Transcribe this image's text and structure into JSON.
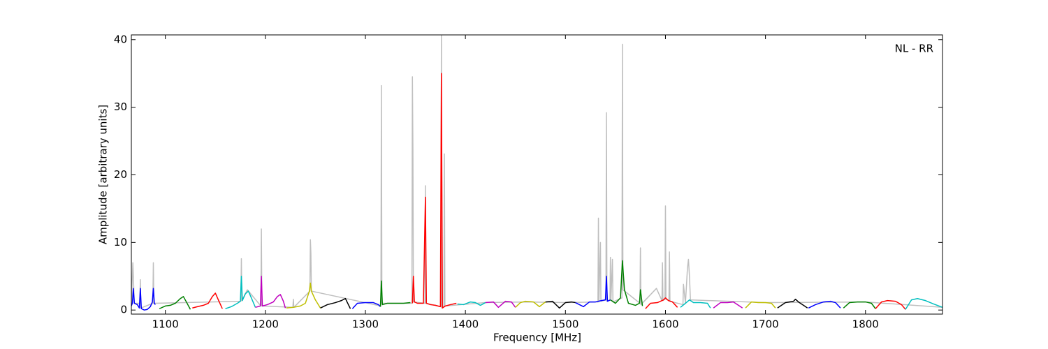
{
  "chart_data": {
    "type": "line",
    "x_label": "Frequency [MHz]",
    "y_label": "Amplitude [arbitrary units]",
    "annotation": "NL - RR",
    "xlim": [
      1066,
      1877
    ],
    "ylim": [
      -0.6,
      40.7
    ],
    "xticks": [
      1100,
      1200,
      1300,
      1400,
      1500,
      1600,
      1700,
      1800
    ],
    "yticks": [
      0,
      10,
      20,
      30,
      40
    ],
    "series": [
      {
        "color": "#bfbfbf",
        "x": [
          1066,
          1067.5,
          1069,
          1074.5,
          1075,
          1075.5,
          1087.5,
          1088,
          1088.5,
          1175.5,
          1176,
          1176.5,
          1182,
          1195.5,
          1196,
          1196.5,
          1227.5,
          1228,
          1228.5,
          1244.5,
          1245,
          1245.5,
          1246,
          1315.5,
          1316,
          1316.5,
          1346.5,
          1347,
          1347.5,
          1348,
          1359.5,
          1360,
          1360.5,
          1375.5,
          1376,
          1376.5,
          1378.5,
          1379,
          1379.5,
          1420,
          1460,
          1500,
          1532.5,
          1533,
          1533.5,
          1535,
          1535.5,
          1540.5,
          1541,
          1541.5,
          1544.5,
          1545,
          1545.5,
          1547,
          1547.5,
          1556.5,
          1557,
          1557.5,
          1574.5,
          1575,
          1575.5,
          1591,
          1596.5,
          1597,
          1597.5,
          1599.5,
          1600,
          1600.5,
          1603.5,
          1604,
          1604.5,
          1617.5,
          1618,
          1620,
          1622,
          1623,
          1624,
          1625,
          1700,
          1800,
          1877
        ],
        "values": [
          1,
          7,
          1,
          1,
          4.5,
          0.3,
          1,
          7,
          1,
          1.3,
          7.6,
          1.4,
          3,
          0.6,
          12,
          0.6,
          0.4,
          1.6,
          0.4,
          2.8,
          10.4,
          8.4,
          2.8,
          0.6,
          33.2,
          1,
          1,
          34.5,
          24,
          1.2,
          1,
          18.4,
          1,
          0.5,
          41,
          0.3,
          0.6,
          23.1,
          0.6,
          1.1,
          1.2,
          1.1,
          1.2,
          13.6,
          1.2,
          10,
          1.3,
          1.5,
          29.2,
          1.3,
          1.5,
          7.8,
          1.5,
          7.5,
          1.2,
          1.8,
          39.3,
          3,
          1,
          9.2,
          0.8,
          3.2,
          1.4,
          7,
          1.4,
          1.6,
          15.4,
          1.6,
          1.4,
          8.6,
          1.3,
          0.8,
          3.8,
          1,
          6.2,
          7.5,
          5,
          1.5,
          1.1,
          1.2,
          0.4
        ]
      },
      {
        "color": "#0000ff",
        "x": [
          1066,
          1067,
          1068,
          1069,
          1072,
          1074,
          1075,
          1076,
          1079,
          1082,
          1085,
          1087,
          1088,
          1089,
          1090
        ],
        "values": [
          0.6,
          1,
          3.2,
          1,
          0.8,
          0.3,
          3.2,
          0.2,
          0,
          0.1,
          0.5,
          1.2,
          3.2,
          1,
          0.8
        ]
      },
      {
        "color": "#008000",
        "x": [
          1094,
          1100,
          1105,
          1110,
          1115,
          1118,
          1121,
          1125
        ],
        "values": [
          0.2,
          0.6,
          0.7,
          1,
          1.7,
          2,
          1.2,
          0.1
        ]
      },
      {
        "color": "#ff0000",
        "x": [
          1127,
          1132,
          1138,
          1143,
          1147,
          1150,
          1153,
          1157
        ],
        "values": [
          0.3,
          0.5,
          0.7,
          1,
          2,
          2.5,
          1.5,
          0.2
        ]
      },
      {
        "color": "#00bfbf",
        "x": [
          1160,
          1166,
          1172,
          1175,
          1176,
          1177,
          1180,
          1183,
          1186,
          1190
        ],
        "values": [
          0.2,
          0.5,
          1,
          1.3,
          5,
          1.4,
          2.4,
          2.8,
          1.8,
          0.4
        ]
      },
      {
        "color": "#bf00bf",
        "x": [
          1190,
          1195,
          1196,
          1197,
          1202,
          1208,
          1212,
          1215,
          1218,
          1220
        ],
        "values": [
          0.4,
          0.6,
          5,
          0.6,
          0.8,
          1.2,
          2,
          2.3,
          1.3,
          0.3
        ]
      },
      {
        "color": "#bfbf00",
        "x": [
          1221,
          1228,
          1235,
          1240,
          1244,
          1245,
          1246,
          1250,
          1255
        ],
        "values": [
          0.3,
          0.4,
          0.6,
          1,
          2.8,
          4,
          2.8,
          1.5,
          0.3
        ]
      },
      {
        "color": "#000000",
        "x": [
          1255,
          1262,
          1270,
          1276,
          1280,
          1283,
          1285
        ],
        "values": [
          0.3,
          0.8,
          1.1,
          1.4,
          1.7,
          0.8,
          0.2
        ]
      },
      {
        "color": "#0000ff",
        "x": [
          1287,
          1292,
          1300,
          1308,
          1313,
          1315
        ],
        "values": [
          0.2,
          1,
          1.1,
          1.1,
          0.8,
          0.5
        ]
      },
      {
        "color": "#008000",
        "x": [
          1315,
          1316,
          1317,
          1322,
          1330,
          1338,
          1345
        ],
        "values": [
          0.5,
          4.3,
          0.8,
          1,
          1,
          1,
          1.1
        ]
      },
      {
        "color": "#ff0000",
        "x": [
          1347,
          1348,
          1349,
          1352,
          1358,
          1360,
          1361,
          1365,
          1370,
          1375,
          1376,
          1377,
          1380,
          1385,
          1391
        ],
        "values": [
          1,
          5,
          1.2,
          1,
          1,
          16.7,
          1,
          0.8,
          0.7,
          0.5,
          35,
          0.3,
          0.6,
          0.8,
          1
        ]
      },
      {
        "color": "#00bfbf",
        "x": [
          1392,
          1398,
          1405,
          1410,
          1415,
          1420
        ],
        "values": [
          0.9,
          0.8,
          1.2,
          1.1,
          0.7,
          1.1
        ]
      },
      {
        "color": "#bf00bf",
        "x": [
          1420,
          1428,
          1433,
          1440,
          1446,
          1450
        ],
        "values": [
          1.1,
          1.2,
          0.4,
          1.3,
          1.2,
          0.4
        ]
      },
      {
        "color": "#bfbf00",
        "x": [
          1450,
          1455,
          1460,
          1468,
          1474,
          1480
        ],
        "values": [
          0.4,
          1.1,
          1.3,
          1.2,
          0.5,
          1.2
        ]
      },
      {
        "color": "#000000",
        "x": [
          1480,
          1487,
          1494,
          1500,
          1506,
          1510
        ],
        "values": [
          1.2,
          1.3,
          0.3,
          1.1,
          1.2,
          1.1
        ]
      },
      {
        "color": "#0000ff",
        "x": [
          1510,
          1518,
          1524,
          1530,
          1536,
          1540,
          1541,
          1542,
          1545
        ],
        "values": [
          1.1,
          0.5,
          1.2,
          1.2,
          1.4,
          1.5,
          5,
          1.3,
          1.5
        ]
      },
      {
        "color": "#008000",
        "x": [
          1545,
          1550,
          1555,
          1557,
          1559,
          1563,
          1570,
          1574,
          1575,
          1577
        ],
        "values": [
          1.5,
          1,
          1.8,
          7.3,
          3,
          1,
          0.7,
          1,
          3,
          0.6
        ]
      },
      {
        "color": "#ff0000",
        "x": [
          1580,
          1585,
          1592,
          1598,
          1600,
          1603,
          1607,
          1612
        ],
        "values": [
          0.2,
          1,
          1.1,
          1.5,
          1.8,
          1.4,
          1.2,
          0.4
        ]
      },
      {
        "color": "#00bfbf",
        "x": [
          1615,
          1620,
          1624,
          1628,
          1635,
          1642,
          1645
        ],
        "values": [
          0.4,
          1,
          1.5,
          1.1,
          1.1,
          1,
          0.3
        ]
      },
      {
        "color": "#bf00bf",
        "x": [
          1648,
          1655,
          1662,
          1668,
          1673,
          1677
        ],
        "values": [
          0.3,
          1.1,
          1.1,
          1.2,
          0.7,
          0.3
        ]
      },
      {
        "color": "#bfbf00",
        "x": [
          1680,
          1686,
          1693,
          1700,
          1706,
          1710
        ],
        "values": [
          0.3,
          1.2,
          1.1,
          1.1,
          1,
          0.3
        ]
      },
      {
        "color": "#000000",
        "x": [
          1712,
          1720,
          1728,
          1730,
          1733,
          1738,
          1742
        ],
        "values": [
          0.3,
          1.1,
          1.3,
          1.6,
          1.2,
          0.7,
          0.3
        ]
      },
      {
        "color": "#0000ff",
        "x": [
          1743,
          1750,
          1758,
          1765,
          1770,
          1775
        ],
        "values": [
          0.3,
          0.8,
          1.2,
          1.3,
          1.1,
          0.3
        ]
      },
      {
        "color": "#008000",
        "x": [
          1778,
          1784,
          1792,
          1800,
          1806,
          1810
        ],
        "values": [
          0.3,
          1.1,
          1.2,
          1.2,
          1,
          0.2
        ]
      },
      {
        "color": "#ff0000",
        "x": [
          1810,
          1816,
          1822,
          1830,
          1836,
          1840
        ],
        "values": [
          0.2,
          1.2,
          1.4,
          1.3,
          0.8,
          0.1
        ]
      },
      {
        "color": "#00bfbf",
        "x": [
          1840,
          1846,
          1852,
          1860,
          1868,
          1877
        ],
        "values": [
          0.1,
          1.5,
          1.7,
          1.4,
          0.9,
          0.4
        ]
      }
    ]
  }
}
